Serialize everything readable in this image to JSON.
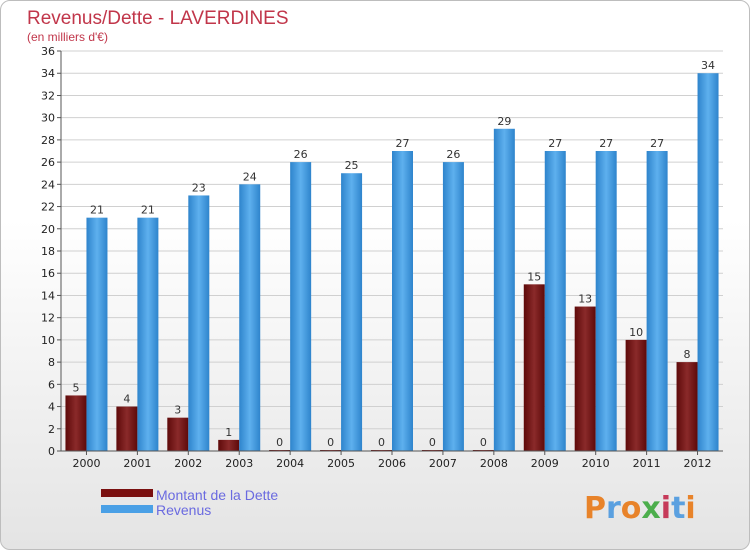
{
  "chart_data": {
    "type": "bar",
    "title": "Revenus/Dette - LAVERDINES",
    "subtitle": "(en milliers d'€)",
    "categories": [
      "2000",
      "2001",
      "2002",
      "2003",
      "2004",
      "2005",
      "2006",
      "2007",
      "2008",
      "2009",
      "2010",
      "2011",
      "2012"
    ],
    "series": [
      {
        "name": "Montant de la Dette",
        "color": "#7a1010",
        "values": [
          5,
          4,
          3,
          1,
          0,
          0,
          0,
          0,
          0,
          15,
          13,
          10,
          8
        ]
      },
      {
        "name": "Revenus",
        "color": "#4aa0e6",
        "values": [
          21,
          21,
          23,
          24,
          26,
          25,
          27,
          26,
          29,
          27,
          27,
          27,
          34
        ]
      }
    ],
    "ylim": [
      0,
      36
    ],
    "yticks": [
      0,
      2,
      4,
      6,
      8,
      10,
      12,
      14,
      16,
      18,
      20,
      22,
      24,
      26,
      28,
      30,
      32,
      34,
      36
    ],
    "grid": true,
    "legend_position": "bottom-left"
  },
  "logo": {
    "text": "Proxiti",
    "colors": [
      "#e8832a",
      "#5aa0e0",
      "#e8832a",
      "#4cae4c",
      "#c63a5a",
      "#5aa0e0",
      "#e8832a"
    ]
  }
}
